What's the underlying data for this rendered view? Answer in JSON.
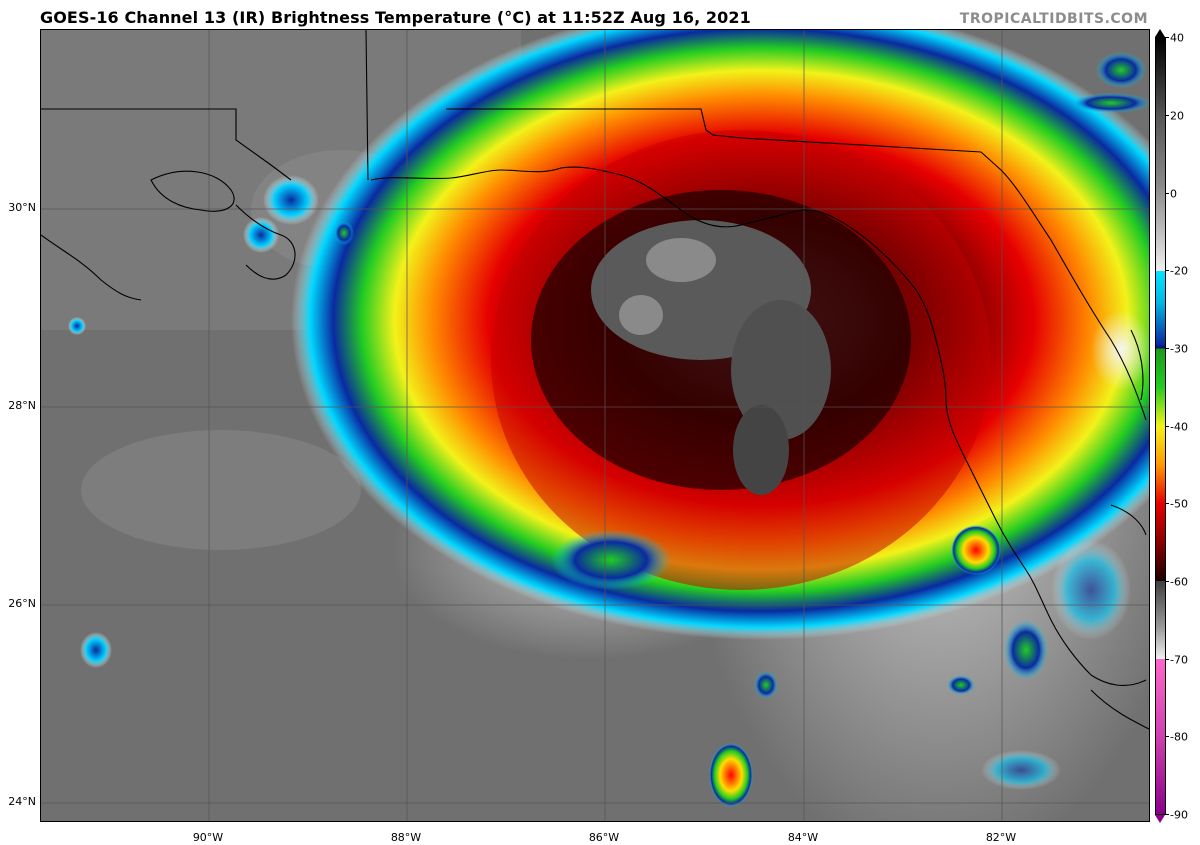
{
  "header": {
    "title": "GOES-16 Channel 13 (IR) Brightness Temperature (°C) at 11:52Z Aug 16, 2021",
    "credit": "TROPICALTIDBITS.COM"
  },
  "map": {
    "lat_labels": [
      "30°N",
      "28°N",
      "26°N",
      "24°N"
    ],
    "lon_labels": [
      "90°W",
      "88°W",
      "86°W",
      "84°W",
      "82°W"
    ]
  },
  "colorbar": {
    "ticks": [
      "40",
      "20",
      "0",
      "-20",
      "-30",
      "-40",
      "-50",
      "-60",
      "-70",
      "-80",
      "-90"
    ],
    "colors": {
      "warm_top": "#000000",
      "gray_mid": "#8a8a8a",
      "white": "#ffffff",
      "cyan": "#00e5ff",
      "blue": "#0a2aa0",
      "green": "#22cc22",
      "yellow": "#f2f21a",
      "orange": "#ff9900",
      "red": "#e60000",
      "dark_red": "#3a0000",
      "pink": "#ff66cc",
      "magenta": "#8b008b"
    }
  }
}
